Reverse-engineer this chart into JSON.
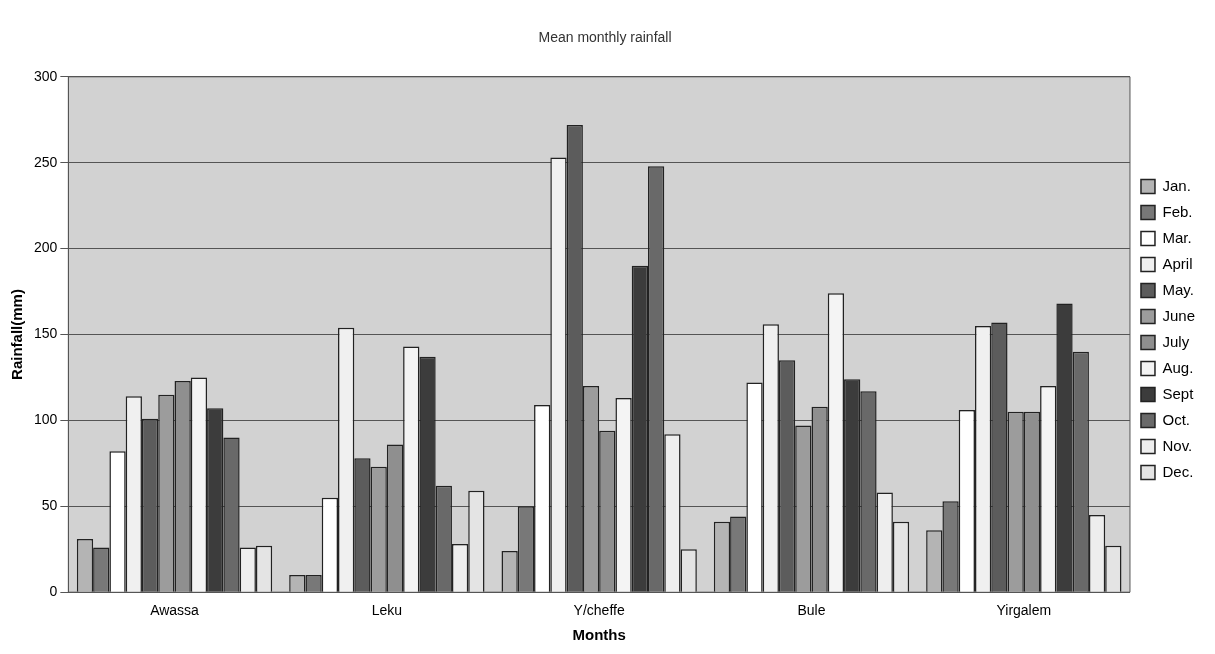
{
  "chart_data": {
    "type": "bar",
    "title": "Mean monthly rainfall",
    "xlabel": "Months",
    "ylabel": "Rainfall(mm)",
    "categories": [
      "Awassa",
      "Leku",
      "Y/cheffe",
      "Bule",
      "Yirgalem"
    ],
    "series": [
      {
        "name": "Jan.",
        "color": "#b4b4b4",
        "values": [
          31,
          10,
          24,
          41,
          36
        ]
      },
      {
        "name": "Feb.",
        "color": "#787878",
        "values": [
          26,
          10,
          50,
          44,
          53
        ]
      },
      {
        "name": "Mar.",
        "color": "#ffffff",
        "values": [
          82,
          55,
          109,
          122,
          106
        ]
      },
      {
        "name": "April",
        "color": "#f0f0f0",
        "values": [
          114,
          154,
          253,
          156,
          155
        ]
      },
      {
        "name": "May.",
        "color": "#5c5c5c",
        "values": [
          101,
          78,
          272,
          135,
          157
        ]
      },
      {
        "name": "June",
        "color": "#9c9c9c",
        "values": [
          115,
          73,
          120,
          97,
          105
        ]
      },
      {
        "name": "July",
        "color": "#8f8f8f",
        "values": [
          123,
          86,
          94,
          108,
          105
        ]
      },
      {
        "name": "Aug.",
        "color": "#f4f4f4",
        "values": [
          125,
          143,
          113,
          174,
          120
        ]
      },
      {
        "name": "Sept",
        "color": "#3c3c3c",
        "values": [
          107,
          137,
          190,
          124,
          168
        ]
      },
      {
        "name": "Oct.",
        "color": "#696969",
        "values": [
          90,
          62,
          248,
          117,
          140
        ]
      },
      {
        "name": "Nov.",
        "color": "#eeeeee",
        "values": [
          26,
          28,
          92,
          58,
          45
        ]
      },
      {
        "name": "Dec.",
        "color": "#e4e4e4",
        "values": [
          27,
          59,
          25,
          41,
          27
        ]
      }
    ],
    "ylim": [
      0,
      300
    ],
    "yticks": [
      0,
      50,
      100,
      150,
      200,
      250,
      300
    ],
    "grid": "y",
    "legend": "right"
  }
}
